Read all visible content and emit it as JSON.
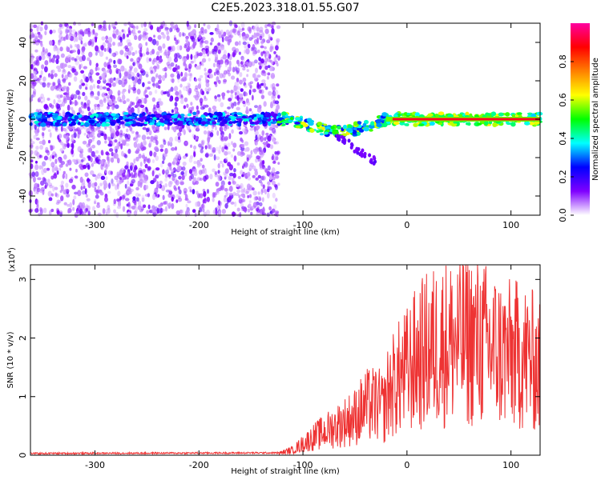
{
  "title": "C2E5.2023.318.01.55.G07",
  "chart_data": [
    {
      "type": "heatmap",
      "xlabel": "Height of straight line (km)",
      "ylabel": "Frequency (Hz)",
      "xlim": [
        -362,
        128
      ],
      "ylim": [
        -50,
        50
      ],
      "xticks": [
        -300,
        -200,
        -100,
        0,
        100
      ],
      "yticks": [
        -40,
        -20,
        0,
        20,
        40
      ],
      "colorbar": {
        "label": "Normalized spectral amplitude",
        "range": [
          0,
          1
        ],
        "ticks": [
          "0.0",
          "0.2",
          "0.4",
          "0.6",
          "0.8"
        ],
        "colormap": [
          "#ffffff",
          "#7f00ff",
          "#0000ff",
          "#00ffff",
          "#00ff00",
          "#ffff00",
          "#ff8000",
          "#ff0000",
          "#ff00a0"
        ]
      },
      "features": {
        "broadband_noise_region_km": [
          -362,
          -123
        ],
        "signal_band_center_hz": 0,
        "signal_band_halfwidth_hz": 3,
        "saturated_band_km": [
          -20,
          128
        ]
      }
    },
    {
      "type": "line",
      "xlabel": "Height of straight line (km)",
      "ylabel": "SNR (10 * v/v)",
      "yscale_label": "(x10",
      "yscale_exp": "4",
      "yscale_close": ")",
      "xlim": [
        -362,
        128
      ],
      "ylim": [
        0,
        3.25
      ],
      "xticks": [
        -300,
        -200,
        -100,
        0,
        100
      ],
      "yticks": [
        0,
        1,
        2,
        3
      ],
      "color": "#ee3333",
      "envelope": {
        "x": [
          -362,
          -123,
          -110,
          -90,
          -70,
          -50,
          -40,
          -30,
          -22,
          -18,
          -10,
          0,
          10,
          20,
          30,
          40,
          50,
          60,
          70,
          80,
          90,
          100,
          110,
          120,
          128
        ],
        "y": [
          0.03,
          0.04,
          0.1,
          0.35,
          0.55,
          0.75,
          0.95,
          1.0,
          0.9,
          1.25,
          1.45,
          1.65,
          1.9,
          2.05,
          2.15,
          2.2,
          2.2,
          2.25,
          2.2,
          2.1,
          2.0,
          1.95,
          1.95,
          1.85,
          1.7
        ]
      }
    }
  ]
}
